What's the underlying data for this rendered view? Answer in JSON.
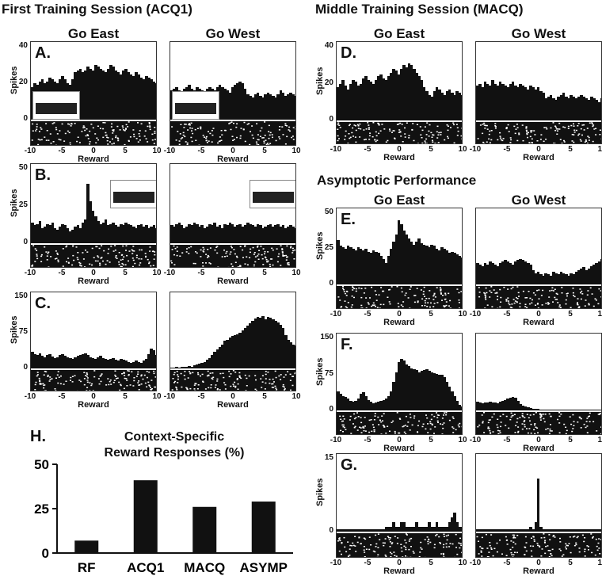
{
  "headings": {
    "first": "First Training Session (ACQ1)",
    "middle": "Middle Training Session (MACQ)",
    "asymptotic": "Asymptotic Performance"
  },
  "conditions": {
    "east": "Go East",
    "west": "Go West"
  },
  "axis": {
    "xlabel": "Reward",
    "ylabel": "Spikes",
    "xticks": [
      "-10",
      "-5",
      "0",
      "5",
      "10"
    ]
  },
  "colors": {
    "bar": "#111111",
    "raster_bg": "#111111",
    "raster_dot": "#ffffff",
    "zero_line": "#ffffff"
  },
  "panels": [
    {
      "id": "A",
      "label": "A.",
      "yticks": [
        "40",
        "20",
        "0"
      ],
      "ymax": 40,
      "inset": "left",
      "east": [
        18,
        20,
        19,
        21,
        22,
        20,
        21,
        23,
        22,
        21,
        20,
        22,
        24,
        22,
        20,
        19,
        22,
        26,
        27,
        28,
        26,
        27,
        29,
        28,
        27,
        30,
        29,
        28,
        27,
        26,
        28,
        30,
        29,
        27,
        26,
        25,
        27,
        28,
        26,
        25,
        24,
        26,
        25,
        23,
        22,
        24,
        23,
        22,
        21,
        20
      ],
      "west": [
        16,
        17,
        18,
        16,
        15,
        17,
        18,
        19,
        17,
        16,
        18,
        17,
        16,
        15,
        17,
        18,
        17,
        16,
        18,
        19,
        18,
        17,
        16,
        15,
        18,
        19,
        20,
        21,
        20,
        17,
        14,
        13,
        12,
        14,
        15,
        13,
        12,
        14,
        15,
        14,
        13,
        12,
        14,
        16,
        15,
        13,
        14,
        15,
        14,
        13
      ]
    },
    {
      "id": "B",
      "label": "B.",
      "yticks": [
        "50",
        "25",
        "0"
      ],
      "ymax": 50,
      "inset": "right",
      "east": [
        14,
        12,
        13,
        15,
        10,
        11,
        13,
        12,
        14,
        10,
        9,
        11,
        13,
        12,
        10,
        8,
        9,
        11,
        12,
        10,
        14,
        16,
        40,
        28,
        22,
        18,
        15,
        13,
        14,
        16,
        12,
        13,
        14,
        12,
        11,
        13,
        12,
        14,
        13,
        12,
        11,
        10,
        12,
        13,
        11,
        12,
        10,
        11,
        12,
        10
      ],
      "west": [
        12,
        11,
        13,
        14,
        12,
        10,
        11,
        13,
        12,
        14,
        13,
        11,
        12,
        10,
        11,
        13,
        12,
        14,
        11,
        12,
        10,
        13,
        12,
        14,
        13,
        11,
        12,
        13,
        11,
        12,
        14,
        13,
        12,
        11,
        13,
        12,
        10,
        11,
        12,
        13,
        11,
        12,
        13,
        11,
        12,
        10,
        11,
        12,
        11,
        10
      ]
    },
    {
      "id": "C",
      "label": "C.",
      "yticks": [
        "150",
        "75",
        "0"
      ],
      "ymax": 150,
      "inset": "",
      "east": [
        35,
        30,
        28,
        32,
        26,
        24,
        28,
        30,
        25,
        22,
        24,
        28,
        30,
        26,
        24,
        22,
        20,
        24,
        26,
        28,
        30,
        32,
        28,
        24,
        22,
        20,
        24,
        26,
        22,
        20,
        18,
        20,
        22,
        18,
        16,
        20,
        18,
        16,
        14,
        12,
        14,
        16,
        14,
        12,
        16,
        20,
        30,
        42,
        38,
        28
      ],
      "west": [
        2,
        2,
        3,
        2,
        3,
        4,
        3,
        5,
        4,
        6,
        8,
        10,
        12,
        14,
        18,
        22,
        28,
        35,
        40,
        45,
        50,
        58,
        60,
        65,
        68,
        70,
        72,
        75,
        80,
        85,
        90,
        95,
        100,
        105,
        108,
        106,
        110,
        104,
        108,
        106,
        104,
        100,
        96,
        92,
        85,
        70,
        60,
        55,
        50,
        48
      ]
    },
    {
      "id": "D",
      "label": "D.",
      "yticks": [
        "40",
        "20",
        "0"
      ],
      "ymax": 40,
      "inset": "",
      "east": [
        18,
        20,
        22,
        19,
        17,
        20,
        22,
        21,
        19,
        20,
        23,
        24,
        22,
        21,
        20,
        22,
        24,
        25,
        23,
        22,
        24,
        26,
        28,
        27,
        25,
        28,
        30,
        29,
        31,
        30,
        28,
        26,
        24,
        22,
        18,
        16,
        14,
        13,
        16,
        18,
        17,
        15,
        14,
        16,
        17,
        15,
        14,
        16,
        15,
        14
      ],
      "west": [
        19,
        20,
        18,
        21,
        20,
        19,
        22,
        20,
        19,
        21,
        20,
        19,
        18,
        20,
        21,
        19,
        18,
        20,
        19,
        18,
        17,
        19,
        18,
        17,
        18,
        16,
        15,
        12,
        13,
        14,
        12,
        11,
        13,
        14,
        15,
        13,
        12,
        14,
        13,
        12,
        13,
        14,
        13,
        12,
        11,
        13,
        12,
        11,
        10,
        12
      ]
    },
    {
      "id": "E",
      "label": "E.",
      "yticks": [
        "50",
        "25",
        "0"
      ],
      "ymax": 50,
      "inset": "",
      "east": [
        31,
        27,
        26,
        25,
        27,
        26,
        25,
        24,
        26,
        25,
        24,
        25,
        23,
        22,
        24,
        23,
        22,
        20,
        18,
        15,
        20,
        25,
        30,
        35,
        45,
        42,
        38,
        35,
        32,
        30,
        28,
        30,
        32,
        29,
        28,
        27,
        26,
        28,
        27,
        25,
        24,
        26,
        25,
        24,
        22,
        23,
        22,
        21,
        20,
        19
      ],
      "west": [
        15,
        14,
        13,
        15,
        14,
        16,
        15,
        14,
        13,
        15,
        16,
        17,
        16,
        15,
        14,
        16,
        17,
        18,
        17,
        16,
        15,
        14,
        10,
        8,
        9,
        7,
        6,
        8,
        7,
        6,
        9,
        8,
        7,
        9,
        8,
        7,
        6,
        8,
        7,
        9,
        10,
        11,
        12,
        10,
        11,
        13,
        14,
        15,
        16,
        18
      ]
    },
    {
      "id": "F",
      "label": "F.",
      "yticks": [
        "150",
        "75",
        "0"
      ],
      "ymax": 150,
      "inset": "",
      "east": [
        40,
        35,
        30,
        28,
        25,
        20,
        18,
        20,
        25,
        35,
        38,
        30,
        22,
        18,
        15,
        16,
        18,
        20,
        22,
        25,
        30,
        40,
        60,
        80,
        100,
        108,
        104,
        96,
        92,
        88,
        86,
        84,
        80,
        82,
        84,
        86,
        82,
        80,
        78,
        76,
        75,
        74,
        70,
        60,
        50,
        40,
        30,
        20,
        12,
        8
      ],
      "west": [
        18,
        16,
        15,
        17,
        16,
        18,
        17,
        16,
        15,
        18,
        20,
        22,
        24,
        26,
        28,
        26,
        20,
        14,
        10,
        8,
        6,
        5,
        4,
        3,
        3,
        2,
        2,
        2,
        2,
        2,
        2,
        2,
        2,
        2,
        2,
        2,
        2,
        2,
        2,
        2,
        2,
        2,
        2,
        2,
        2,
        2,
        2,
        2,
        2,
        2
      ]
    },
    {
      "id": "G",
      "label": "G.",
      "yticks": [
        "15",
        "0"
      ],
      "ymax": 15,
      "inset": "",
      "east": [
        0.5,
        0.5,
        0.5,
        0.5,
        0.5,
        0.5,
        0.5,
        0.5,
        0.5,
        0.5,
        0.5,
        0.5,
        0.5,
        0.5,
        0.5,
        0.5,
        0.5,
        0.5,
        0.5,
        1,
        1,
        1,
        2,
        1,
        1,
        2,
        2,
        1,
        1,
        1,
        1,
        2,
        1,
        1,
        1,
        1,
        2,
        1,
        1,
        2,
        1,
        1,
        1,
        1,
        2,
        3,
        4,
        2,
        1,
        1
      ],
      "west": [
        0.5,
        0.5,
        0.5,
        0.5,
        0.5,
        0.5,
        0.5,
        0.5,
        0.5,
        0.5,
        0.5,
        0.5,
        0.5,
        0.5,
        0.5,
        0.5,
        0.5,
        0.5,
        0.5,
        0.5,
        0.5,
        1,
        0.5,
        2,
        11,
        1,
        0.5,
        0.5,
        0.5,
        0.5,
        0.5,
        0.5,
        0.5,
        0.5,
        0.5,
        0.5,
        0.5,
        0.5,
        0.5,
        0.5,
        0.5,
        0.5,
        0.5,
        0.5,
        0.5,
        0.5,
        0.5,
        0.5,
        0.5,
        0.5
      ]
    }
  ],
  "chart_data": {
    "type": "bar",
    "label": "H.",
    "title": "Context-Specific Reward Responses (%)",
    "title_line1": "Context-Specific",
    "title_line2": "Reward Responses (%)",
    "categories": [
      "RF",
      "ACQ1",
      "MACQ",
      "ASYMP"
    ],
    "values": [
      7,
      41,
      26,
      29
    ],
    "yticks": [
      "50",
      "25",
      "0"
    ],
    "ylim": [
      0,
      50
    ]
  }
}
